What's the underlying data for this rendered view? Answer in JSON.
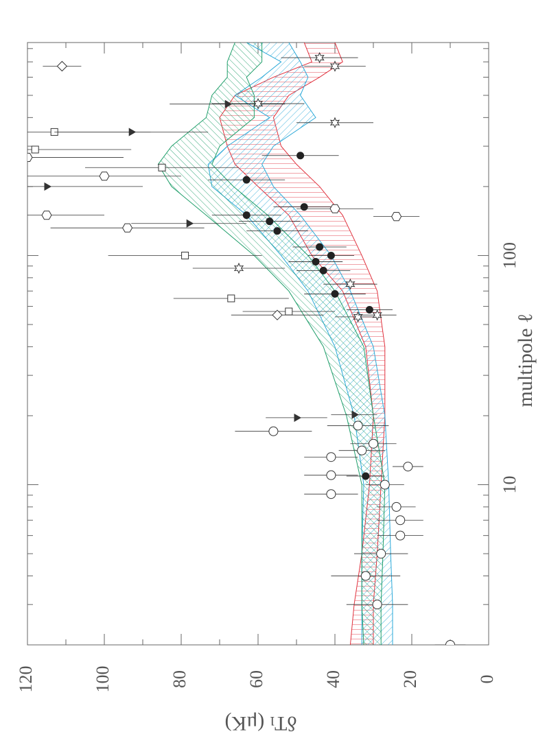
{
  "chart_data": {
    "type": "scatter",
    "x_label": "multipole ℓ",
    "y_label": "δTₗ (μK)",
    "xlim": [
      2,
      850
    ],
    "xlog": true,
    "xticks": [
      10,
      100
    ],
    "xminorticks": [
      2,
      3,
      4,
      5,
      6,
      7,
      8,
      9,
      20,
      30,
      40,
      50,
      60,
      70,
      80,
      90,
      200,
      300,
      400,
      500,
      600,
      700,
      800
    ],
    "ylim": [
      0,
      120
    ],
    "yticks": [
      0,
      20,
      40,
      60,
      80,
      100,
      120
    ],
    "yminorticks": [
      10,
      30,
      50,
      70,
      90,
      110
    ],
    "bands": [
      {
        "color": "#e0303c",
        "hatch": 90,
        "x": [
          2,
          3,
          5,
          10,
          20,
          40,
          70,
          100,
          150,
          200,
          250,
          300,
          400,
          500,
          600,
          700,
          850
        ],
        "upper": [
          36,
          35,
          33,
          31,
          30,
          32,
          38,
          46,
          52,
          60,
          66,
          68,
          70,
          66,
          56,
          46,
          48
        ],
        "lower": [
          30,
          30,
          29,
          28,
          27,
          27,
          29,
          33,
          38,
          44,
          50,
          54,
          56,
          52,
          44,
          38,
          40
        ]
      },
      {
        "color": "#2aa8d8",
        "hatch": 45,
        "x": [
          2,
          3,
          5,
          10,
          20,
          40,
          70,
          100,
          150,
          200,
          250,
          300,
          400,
          500,
          600,
          700,
          850
        ],
        "upper": [
          33,
          33,
          33,
          32.5,
          35,
          40,
          47,
          54,
          63,
          72,
          73,
          68,
          57,
          66,
          59,
          54,
          63
        ],
        "lower": [
          25,
          25,
          25.5,
          26,
          27,
          30,
          36,
          41,
          49,
          56,
          59,
          56,
          45,
          49,
          47,
          49,
          52
        ]
      },
      {
        "color": "#1f9e6a",
        "hatch": -45,
        "x": [
          2,
          3,
          5,
          10,
          20,
          40,
          70,
          100,
          150,
          200,
          250,
          300,
          400,
          500,
          600,
          700,
          850
        ],
        "upper": [
          32.5,
          33,
          33,
          33,
          37,
          43,
          52,
          61,
          73.5,
          82.5,
          86,
          82.5,
          73.5,
          72,
          68,
          68,
          66
        ],
        "lower": [
          28,
          28,
          27.5,
          27,
          30,
          32.5,
          40,
          47,
          57.5,
          66.4,
          72,
          70,
          61,
          61,
          63,
          59,
          59
        ]
      }
    ],
    "series": [
      {
        "marker": "circle",
        "color": "#333333",
        "x": [
          2,
          3,
          4,
          5,
          6,
          7,
          8,
          9.1,
          10,
          11,
          12,
          13.2,
          14.1,
          15.1,
          17.1,
          18.1
        ],
        "values": [
          10,
          29,
          32,
          28,
          23,
          23,
          24,
          41,
          27,
          41,
          21,
          41,
          33,
          30,
          56,
          34
        ],
        "errors": [
          4,
          8,
          9,
          7,
          6,
          6,
          5,
          7,
          5,
          7,
          4,
          7,
          6,
          6,
          10,
          8
        ]
      },
      {
        "marker": "filled-circle",
        "color": "#222222",
        "x": [
          10.9,
          58,
          68,
          86,
          94,
          100,
          109,
          128,
          141,
          150,
          163,
          214,
          273
        ],
        "values": [
          32,
          31,
          40,
          43,
          45,
          41,
          44,
          55,
          57,
          63,
          48,
          63,
          49
        ],
        "errors": [
          5,
          6,
          8,
          7,
          7,
          6,
          7,
          8,
          8,
          9,
          8,
          10,
          10
        ]
      },
      {
        "marker": "hexagon",
        "color": "#333333",
        "x": [
          132,
          148,
          150,
          160,
          222,
          268
        ],
        "values": [
          94,
          24,
          115,
          40,
          100,
          120
        ],
        "errors": [
          20,
          6,
          15,
          10,
          20,
          25
        ]
      },
      {
        "marker": "square",
        "color": "#333333",
        "x": [
          57,
          65,
          100,
          242,
          290,
          346
        ],
        "values": [
          52,
          67,
          79,
          85,
          118,
          113
        ],
        "errors": [
          12,
          15,
          20,
          20,
          25,
          25
        ]
      },
      {
        "marker": "triangle",
        "color": "#333333",
        "x": [
          19.6,
          20.2,
          138,
          200,
          346,
          458
        ],
        "values": [
          50,
          35,
          78,
          115,
          93,
          68
        ],
        "errors": [
          8,
          6,
          15,
          25,
          20,
          15
        ]
      },
      {
        "marker": "star",
        "color": "#333333",
        "x": [
          54,
          55,
          75,
          88,
          380,
          460,
          670,
          730
        ],
        "values": [
          34,
          29,
          36,
          65,
          40,
          60,
          40,
          44
        ],
        "errors": [
          6,
          5,
          7,
          12,
          10,
          12,
          8,
          10
        ]
      },
      {
        "marker": "diamond",
        "color": "#333333",
        "x": [
          55,
          670
        ],
        "values": [
          55,
          111
        ],
        "errors": [
          12,
          5
        ]
      }
    ]
  }
}
